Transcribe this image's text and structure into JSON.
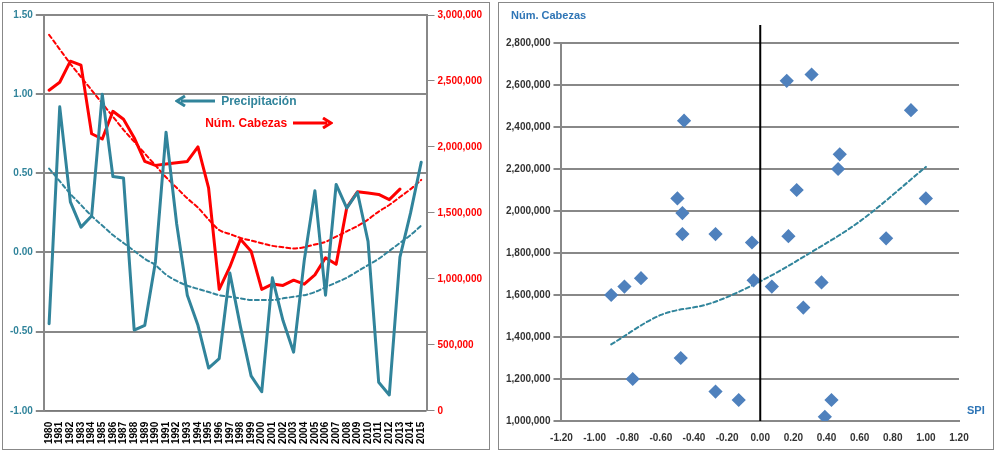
{
  "chart_data": [
    {
      "type": "line",
      "categories": [
        "1980",
        "1981",
        "1982",
        "1983",
        "1984",
        "1985",
        "1986",
        "1987",
        "1988",
        "1989",
        "1990",
        "1991",
        "1992",
        "1993",
        "1994",
        "1995",
        "1996",
        "1997",
        "1998",
        "1999",
        "2000",
        "2001",
        "2002",
        "2003",
        "2004",
        "2005",
        "2006",
        "2007",
        "2008",
        "2009",
        "2010",
        "2011",
        "2012",
        "2013",
        "2014",
        "2015"
      ],
      "series": [
        {
          "name": "Precipitación",
          "color": "#31849b",
          "values": [
            -0.45,
            0.92,
            0.32,
            0.16,
            0.23,
            1.0,
            0.48,
            0.47,
            -0.49,
            -0.46,
            -0.06,
            0.76,
            0.18,
            -0.27,
            -0.46,
            -0.73,
            -0.67,
            -0.13,
            -0.47,
            -0.78,
            -0.88,
            -0.16,
            -0.43,
            -0.63,
            -0.05,
            0.39,
            -0.27,
            0.43,
            0.28,
            0.38,
            0.07,
            -0.82,
            -0.9,
            -0.03,
            0.25,
            0.57
          ]
        },
        {
          "name": "Núm. Cabezas",
          "color": "#ff0000",
          "axis": "y2",
          "values": [
            2430000,
            2490000,
            2650000,
            2620000,
            2100000,
            2060000,
            2270000,
            2210000,
            2070000,
            1890000,
            1860000,
            1870000,
            1880000,
            1890000,
            2000000,
            1690000,
            920000,
            1090000,
            1300000,
            1210000,
            920000,
            960000,
            950000,
            990000,
            960000,
            1030000,
            1160000,
            1110000,
            1540000,
            1660000,
            1650000,
            1640000,
            1600000,
            1680000,
            null,
            null
          ]
        },
        {
          "color": "#31849b",
          "line_style": "dashed",
          "values": [
            0.53,
            0.45,
            0.37,
            0.3,
            0.23,
            0.17,
            0.11,
            0.06,
            0.01,
            -0.04,
            -0.08,
            -0.14,
            -0.18,
            -0.21,
            -0.23,
            -0.25,
            -0.27,
            -0.28,
            -0.29,
            -0.3,
            -0.3,
            -0.3,
            -0.29,
            -0.28,
            -0.27,
            -0.25,
            -0.22,
            -0.19,
            -0.16,
            -0.12,
            -0.08,
            -0.04,
            0.01,
            0.06,
            0.11,
            0.17
          ]
        },
        {
          "color": "#ff0000",
          "line_style": "dashed",
          "axis": "y2",
          "values": [
            2850000,
            2740000,
            2630000,
            2530000,
            2430000,
            2330000,
            2230000,
            2130000,
            2040000,
            1950000,
            1860000,
            1770000,
            1690000,
            1610000,
            1540000,
            1450000,
            1370000,
            1340000,
            1310000,
            1290000,
            1270000,
            1250000,
            1240000,
            1230000,
            1240000,
            1260000,
            1280000,
            1320000,
            1360000,
            1400000,
            1450000,
            1510000,
            1560000,
            1620000,
            1680000,
            1750000
          ]
        }
      ],
      "ylim": [
        -1.0,
        1.5
      ],
      "yticks": [
        {
          "value": -1.0,
          "label": "-1.00"
        },
        {
          "value": -0.5,
          "label": "-0.50"
        },
        {
          "value": 0,
          "label": "0.00"
        },
        {
          "value": 0.5,
          "label": "0.50"
        },
        {
          "value": 1.0,
          "label": "1.00"
        },
        {
          "value": 1.5,
          "label": "1.50"
        }
      ],
      "y2lim": [
        0,
        3000000
      ],
      "y2ticks": [
        {
          "value": 0,
          "label": "0"
        },
        {
          "value": 500000,
          "label": "500,000"
        },
        {
          "value": 1000000,
          "label": "1,000,000"
        },
        {
          "value": 1500000,
          "label": "1,500,000"
        },
        {
          "value": 2000000,
          "label": "2,000,000"
        },
        {
          "value": 2500000,
          "label": "2,500,000"
        },
        {
          "value": 3000000,
          "label": "3,000,000"
        }
      ],
      "grid": "y",
      "legend": "top",
      "marker": "none"
    },
    {
      "type": "scatter",
      "xlabel": "SPI",
      "ylabel": "Núm. Cabezas",
      "series": [
        {
          "type": "scatter",
          "color": "#4f81bd",
          "marker": "diamond",
          "x": [
            0.16,
            0.31,
            -0.46,
            0.91,
            0.48,
            0.47,
            0.22,
            -0.5,
            -0.47,
            1.0,
            -0.47,
            -0.27,
            -0.05,
            0.17,
            0.76,
            -0.72,
            -0.82,
            -0.9,
            -0.04,
            0.07,
            0.37,
            0.26,
            -0.48,
            -0.77,
            -0.27,
            -0.13,
            0.43,
            0.39
          ],
          "values": [
            2620000,
            2650000,
            2430000,
            2480000,
            2270000,
            2200000,
            2100000,
            2060000,
            1990000,
            2060000,
            1890000,
            1890000,
            1850000,
            1880000,
            1870000,
            1680000,
            1640000,
            1600000,
            1670000,
            1640000,
            1660000,
            1540000,
            1300000,
            1200000,
            1140000,
            1100000,
            1100000,
            1020000
          ]
        },
        {
          "type": "line",
          "color": "#31859c",
          "line_style": "dashed",
          "x": [
            -0.9,
            -0.6,
            -0.3,
            0,
            0.3,
            0.6,
            1.0
          ],
          "values": [
            1365000,
            1505000,
            1560000,
            1665000,
            1800000,
            1950000,
            2210000
          ]
        }
      ],
      "xlim": [
        -1.2,
        1.2
      ],
      "xticks": [
        {
          "value": -1.2,
          "label": "-1.20"
        },
        {
          "value": -1.0,
          "label": "-1.00"
        },
        {
          "value": -0.8,
          "label": "-0.80"
        },
        {
          "value": -0.6,
          "label": "-0.60"
        },
        {
          "value": -0.4,
          "label": "-0.40"
        },
        {
          "value": -0.2,
          "label": "-0.20"
        },
        {
          "value": 0,
          "label": "0.00"
        },
        {
          "value": 0.2,
          "label": "0.20"
        },
        {
          "value": 0.4,
          "label": "0.40"
        },
        {
          "value": 0.6,
          "label": "0.60"
        },
        {
          "value": 0.8,
          "label": "0.80"
        },
        {
          "value": 1.0,
          "label": "1.00"
        },
        {
          "value": 1.2,
          "label": "1.20"
        }
      ],
      "ylim": [
        1000000,
        2800000
      ],
      "yticks": [
        {
          "value": 1000000,
          "label": "1,000,000"
        },
        {
          "value": 1200000,
          "label": "1,200,000"
        },
        {
          "value": 1400000,
          "label": "1,400,000"
        },
        {
          "value": 1600000,
          "label": "1,600,000"
        },
        {
          "value": 1800000,
          "label": "1,800,000"
        },
        {
          "value": 2000000,
          "label": "2,000,000"
        },
        {
          "value": 2200000,
          "label": "2,200,000"
        },
        {
          "value": 2400000,
          "label": "2,400,000"
        },
        {
          "value": 2600000,
          "label": "2,600,000"
        },
        {
          "value": 2800000,
          "label": "2,800,000"
        }
      ],
      "ref_lines": [
        {
          "axis": "x",
          "value": 0,
          "color": "#000000"
        }
      ],
      "grid": "y"
    }
  ]
}
